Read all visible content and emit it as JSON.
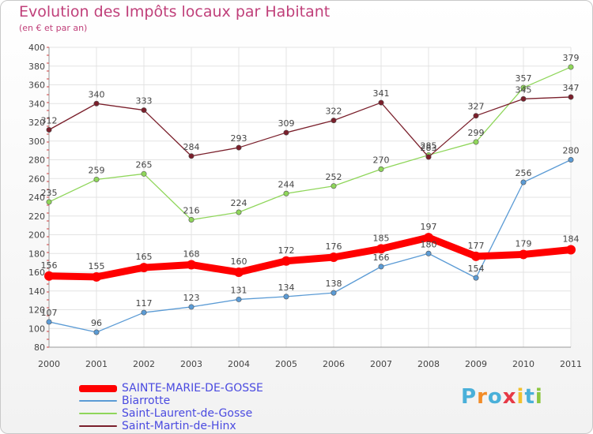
{
  "chart_data": {
    "type": "line",
    "title": "Evolution des Impôts locaux par Habitant",
    "subtitle": "(en € et par an)",
    "xlabel": "",
    "ylabel": "",
    "categories": [
      "2000",
      "2001",
      "2002",
      "2003",
      "2004",
      "2005",
      "2006",
      "2007",
      "2008",
      "2009",
      "2010",
      "2011"
    ],
    "ylim": [
      80,
      400
    ],
    "yticks": [
      80,
      100,
      120,
      140,
      160,
      180,
      200,
      220,
      240,
      260,
      280,
      300,
      320,
      340,
      360,
      380,
      400
    ],
    "grid": true,
    "legend_position": "bottom-left",
    "series": [
      {
        "name": "SAINTE-MARIE-DE-GOSSE",
        "color": "#ff0000",
        "values": [
          156,
          155,
          165,
          168,
          160,
          172,
          176,
          185,
          197,
          177,
          179,
          184
        ]
      },
      {
        "name": "Biarrotte",
        "color": "#5b9bd5",
        "values": [
          107,
          96,
          117,
          123,
          131,
          134,
          138,
          166,
          180,
          154,
          256,
          280
        ]
      },
      {
        "name": "Saint-Laurent-de-Gosse",
        "color": "#8fd65a",
        "values": [
          235,
          259,
          265,
          216,
          224,
          244,
          252,
          270,
          285,
          299,
          357,
          379
        ]
      },
      {
        "name": "Saint-Martin-de-Hinx",
        "color": "#7a1f2b",
        "values": [
          312,
          340,
          333,
          284,
          293,
          309,
          322,
          341,
          283,
          327,
          345,
          347
        ]
      }
    ]
  },
  "legend_label_color": "#4a4ae0",
  "logo": {
    "letters": [
      "P",
      "r",
      "o",
      "x",
      "i",
      "t",
      "i"
    ],
    "colors": [
      "#4ab0d9",
      "#f28c28",
      "#4ab0d9",
      "#e63946",
      "#f2c12e",
      "#4ab0d9",
      "#8cc63f"
    ]
  }
}
